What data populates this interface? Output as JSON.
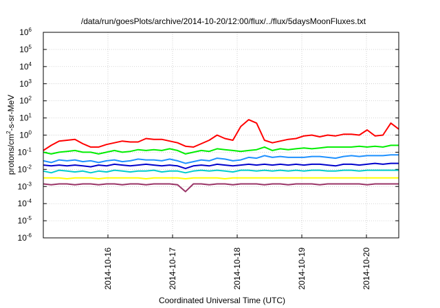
{
  "chart_data": {
    "type": "line",
    "title": "/data/run/goesPlots/archive/2014-10-20/12:00/flux/../flux/5daysMoonFluxes.txt",
    "xlabel": "Coordinated Universal Time (UTC)",
    "ylabel": "protons/cm²-s-sr-MeV",
    "ylabel_parts": {
      "pre": "protons/cm",
      "sup": "2",
      "post": "-s-sr-MeV"
    },
    "yscale": "log",
    "ylim_exp": [
      -6,
      6
    ],
    "y_ticks": [
      {
        "base": "10",
        "exp": "6"
      },
      {
        "base": "10",
        "exp": "5"
      },
      {
        "base": "10",
        "exp": "4"
      },
      {
        "base": "10",
        "exp": "3"
      },
      {
        "base": "10",
        "exp": "2"
      },
      {
        "base": "10",
        "exp": "1"
      },
      {
        "base": "10",
        "exp": "0"
      },
      {
        "base": "10",
        "exp": "-1"
      },
      {
        "base": "10",
        "exp": "-2"
      },
      {
        "base": "10",
        "exp": "-3"
      },
      {
        "base": "10",
        "exp": "-4"
      },
      {
        "base": "10",
        "exp": "-5"
      },
      {
        "base": "10",
        "exp": "-6"
      }
    ],
    "x_ticks": [
      "2014-10-16",
      "2014-10-17",
      "2014-10-18",
      "2014-10-19",
      "2014-10-20"
    ],
    "xlim": [
      "2014-10-15 00:00",
      "2014-10-20 12:00"
    ],
    "grid": true,
    "x_tick_dates": [
      "2014-10-15 00:00",
      "2014-10-16 00:00",
      "2014-10-17 00:00",
      "2014-10-18 00:00",
      "2014-10-19 00:00",
      "2014-10-20 00:00",
      "2014-10-20 12:00"
    ],
    "series": [
      {
        "color": "#ff0000",
        "log_values": [
          -0.9,
          -0.6,
          -0.35,
          -0.3,
          -0.25,
          -0.5,
          -0.7,
          -0.7,
          -0.55,
          -0.45,
          -0.35,
          -0.4,
          -0.4,
          -0.2,
          -0.25,
          -0.25,
          -0.35,
          -0.45,
          -0.65,
          -0.7,
          -0.5,
          -0.3,
          0.0,
          -0.2,
          -0.3,
          0.5,
          0.9,
          0.7,
          -0.3,
          -0.45,
          -0.35,
          -0.25,
          -0.2,
          -0.05,
          0.0,
          -0.1,
          0.0,
          -0.05,
          0.05,
          0.05,
          0.0,
          0.3,
          -0.05,
          0.0,
          0.7,
          0.35
        ]
      },
      {
        "color": "#00ee00",
        "log_values": [
          -1.0,
          -1.1,
          -1.0,
          -0.95,
          -0.9,
          -1.0,
          -1.0,
          -1.1,
          -1.0,
          -0.9,
          -1.0,
          -0.95,
          -0.85,
          -0.9,
          -0.85,
          -0.9,
          -0.8,
          -0.9,
          -1.1,
          -1.0,
          -0.9,
          -0.95,
          -0.8,
          -0.85,
          -0.9,
          -0.95,
          -0.9,
          -0.85,
          -0.7,
          -0.9,
          -0.8,
          -0.85,
          -0.8,
          -0.75,
          -0.8,
          -0.75,
          -0.7,
          -0.7,
          -0.7,
          -0.7,
          -0.65,
          -0.7,
          -0.65,
          -0.7,
          -0.6,
          -0.6
        ]
      },
      {
        "color": "#1e90ff",
        "log_values": [
          -1.5,
          -1.6,
          -1.45,
          -1.5,
          -1.45,
          -1.55,
          -1.5,
          -1.6,
          -1.5,
          -1.45,
          -1.55,
          -1.5,
          -1.4,
          -1.45,
          -1.45,
          -1.5,
          -1.4,
          -1.5,
          -1.65,
          -1.55,
          -1.45,
          -1.5,
          -1.35,
          -1.4,
          -1.5,
          -1.45,
          -1.3,
          -1.35,
          -1.2,
          -1.3,
          -1.25,
          -1.3,
          -1.3,
          -1.3,
          -1.25,
          -1.25,
          -1.3,
          -1.35,
          -1.25,
          -1.2,
          -1.25,
          -1.2,
          -1.2,
          -1.2,
          -1.15,
          -1.15
        ]
      },
      {
        "color": "#0000cc",
        "log_values": [
          -1.75,
          -1.8,
          -1.75,
          -1.8,
          -1.75,
          -1.8,
          -1.85,
          -1.75,
          -1.8,
          -1.7,
          -1.75,
          -1.8,
          -1.75,
          -1.7,
          -1.75,
          -1.8,
          -1.75,
          -1.8,
          -1.95,
          -1.8,
          -1.75,
          -1.8,
          -1.7,
          -1.75,
          -1.8,
          -1.75,
          -1.7,
          -1.75,
          -1.7,
          -1.75,
          -1.7,
          -1.75,
          -1.7,
          -1.75,
          -1.7,
          -1.7,
          -1.75,
          -1.8,
          -1.7,
          -1.7,
          -1.75,
          -1.7,
          -1.65,
          -1.7,
          -1.65,
          -1.65
        ]
      },
      {
        "color": "#00cccc",
        "log_values": [
          -2.1,
          -2.2,
          -2.05,
          -2.1,
          -2.15,
          -2.1,
          -2.2,
          -2.1,
          -2.15,
          -2.05,
          -2.1,
          -2.15,
          -2.1,
          -2.1,
          -2.05,
          -2.15,
          -2.1,
          -2.1,
          -2.2,
          -2.1,
          -2.05,
          -2.1,
          -2.05,
          -2.1,
          -2.15,
          -2.05,
          -2.05,
          -2.1,
          -2.05,
          -2.1,
          -2.05,
          -2.1,
          -2.05,
          -2.1,
          -2.05,
          -2.05,
          -2.1,
          -2.1,
          -2.05,
          -2.05,
          -2.1,
          -2.05,
          -2.05,
          -2.05,
          -2.05,
          -2.05
        ]
      },
      {
        "color": "#ffff00",
        "log_values": [
          -2.5,
          -2.5,
          -2.5,
          -2.55,
          -2.5,
          -2.5,
          -2.5,
          -2.55,
          -2.5,
          -2.5,
          -2.5,
          -2.5,
          -2.5,
          -2.55,
          -2.5,
          -2.5,
          -2.5,
          -2.5,
          -2.55,
          -2.5,
          -2.5,
          -2.5,
          -2.5,
          -2.55,
          -2.5,
          -2.5,
          -2.5,
          -2.5,
          -2.5,
          -2.5,
          -2.5,
          -2.5,
          -2.5,
          -2.5,
          -2.5,
          -2.5,
          -2.5,
          -2.5,
          -2.5,
          -2.5,
          -2.5,
          -2.5,
          -2.5,
          -2.5,
          -2.5,
          -2.5
        ]
      },
      {
        "color": "#993366",
        "log_values": [
          -2.85,
          -2.9,
          -2.85,
          -2.85,
          -2.9,
          -2.85,
          -2.85,
          -2.9,
          -2.85,
          -2.85,
          -2.9,
          -2.85,
          -2.85,
          -2.9,
          -2.85,
          -2.85,
          -2.85,
          -2.9,
          -3.3,
          -2.85,
          -2.85,
          -2.9,
          -2.85,
          -2.85,
          -2.9,
          -2.85,
          -2.85,
          -2.85,
          -2.9,
          -2.85,
          -2.85,
          -2.9,
          -2.85,
          -2.85,
          -2.85,
          -2.9,
          -2.85,
          -2.85,
          -2.85,
          -2.85,
          -2.85,
          -2.9,
          -2.85,
          -2.85,
          -2.85,
          -2.85
        ]
      }
    ]
  }
}
